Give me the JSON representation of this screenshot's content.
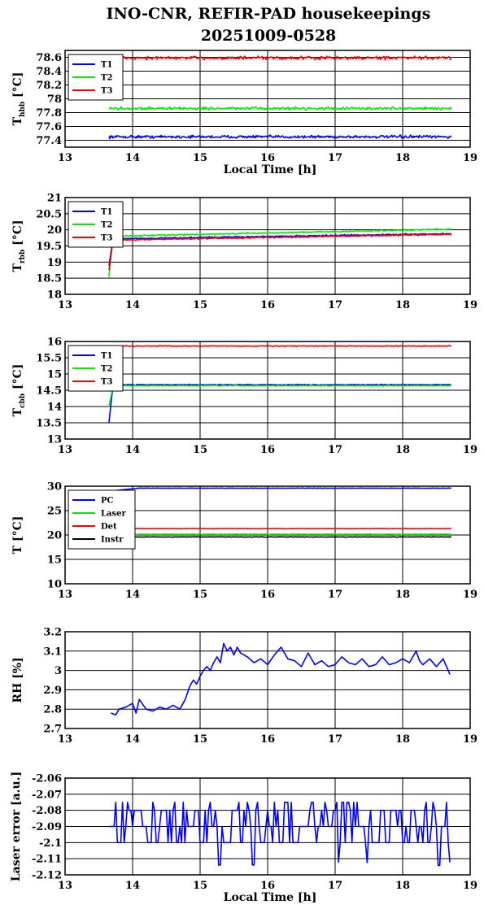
{
  "figure": {
    "title_line1": "INO-CNR, REFIR-PAD housekeepings",
    "title_line2": "20251009-0528"
  },
  "chart_data": [
    {
      "id": "hbb",
      "type": "line",
      "title": "",
      "xlabel": "Local Time [h]",
      "ylabel": {
        "main": "T",
        "sub": "hbb",
        "unit": " [°C]"
      },
      "xlim": [
        13,
        19
      ],
      "ylim": [
        77.3,
        78.7
      ],
      "xticks": [
        "13",
        "14",
        "15",
        "16",
        "17",
        "18",
        "19"
      ],
      "yticks": [
        "77.4",
        "77.6",
        "77.8",
        "78",
        "78.2",
        "78.4",
        "78.6"
      ],
      "ytick_values": [
        77.4,
        77.6,
        77.8,
        78.0,
        78.2,
        78.4,
        78.6
      ],
      "grid": true,
      "legend": "top-left",
      "x_range": [
        13.65,
        18.72
      ],
      "series": [
        {
          "name": "T1",
          "color": "#0000ff",
          "mean": 77.45,
          "noise": 0.03
        },
        {
          "name": "T2",
          "color": "#00ee00",
          "mean": 77.86,
          "noise": 0.03
        },
        {
          "name": "T3",
          "color": "#ff0000",
          "mean": 78.59,
          "noise": 0.035
        }
      ]
    },
    {
      "id": "rbb",
      "type": "line",
      "title": "",
      "xlabel": "",
      "ylabel": {
        "main": "T",
        "sub": "rbb",
        "unit": " [°C]"
      },
      "xlim": [
        13,
        19
      ],
      "ylim": [
        18,
        21
      ],
      "xticks": [
        "13",
        "14",
        "15",
        "16",
        "17",
        "18",
        "19"
      ],
      "yticks": [
        "18",
        "18.5",
        "19",
        "19.5",
        "20",
        "20.5",
        "21"
      ],
      "ytick_values": [
        18,
        18.5,
        19,
        19.5,
        20,
        20.5,
        21
      ],
      "grid": true,
      "legend": "top-left",
      "x_range": [
        13.65,
        18.72
      ],
      "series": [
        {
          "name": "T1",
          "color": "#0000ff",
          "start": 18.9,
          "mean_start": 19.72,
          "mean_end": 19.88,
          "noise": 0.03
        },
        {
          "name": "T2",
          "color": "#00ee00",
          "start": 18.55,
          "mean_start": 19.8,
          "mean_end": 20.02,
          "noise": 0.03
        },
        {
          "name": "T3",
          "color": "#ff0000",
          "start": 18.75,
          "mean_start": 19.68,
          "mean_end": 19.86,
          "noise": 0.03
        }
      ]
    },
    {
      "id": "cbb",
      "type": "line",
      "title": "",
      "xlabel": "",
      "ylabel": {
        "main": "T",
        "sub": "cbb",
        "unit": " [°C]"
      },
      "xlim": [
        13,
        19
      ],
      "ylim": [
        13,
        16
      ],
      "xticks": [
        "13",
        "14",
        "15",
        "16",
        "17",
        "18",
        "19"
      ],
      "yticks": [
        "13",
        "13.5",
        "14",
        "14.5",
        "15",
        "15.5",
        "16"
      ],
      "ytick_values": [
        13,
        13.5,
        14,
        14.5,
        15,
        15.5,
        16
      ],
      "grid": true,
      "legend": "top-left",
      "x_range": [
        13.65,
        18.72
      ],
      "series": [
        {
          "name": "T1",
          "color": "#0000ff",
          "start": 13.5,
          "mean": 14.67,
          "noise": 0.02
        },
        {
          "name": "T2",
          "color": "#00ee00",
          "start": 14.0,
          "mean": 14.64,
          "noise": 0.02
        },
        {
          "name": "T3",
          "color": "#ff0000",
          "start": 15.85,
          "mean": 15.86,
          "noise": 0.02
        }
      ]
    },
    {
      "id": "temps",
      "type": "line",
      "title": "",
      "xlabel": "",
      "ylabel": {
        "main": "T [°C]",
        "sub": "",
        "unit": ""
      },
      "xlim": [
        13,
        19
      ],
      "ylim": [
        10,
        30
      ],
      "xticks": [
        "13",
        "14",
        "15",
        "16",
        "17",
        "18",
        "19"
      ],
      "yticks": [
        "10",
        "15",
        "20",
        "25",
        "30"
      ],
      "ytick_values": [
        10,
        15,
        20,
        25,
        30
      ],
      "grid": true,
      "legend": "top-left",
      "x_range": [
        13.65,
        18.72
      ],
      "series": [
        {
          "name": "PC",
          "color": "#0000ff",
          "start": 29.0,
          "mean": 29.6,
          "noise": 0.05
        },
        {
          "name": "Laser",
          "color": "#00ee00",
          "start": 20.0,
          "mean": 20.15,
          "noise": 0.05
        },
        {
          "name": "Det",
          "color": "#ff0000",
          "start": 21.3,
          "mean": 21.3,
          "noise": 0.05
        },
        {
          "name": "Instr",
          "color": "#000000",
          "start": 19.3,
          "mean": 19.6,
          "noise": 0.08
        }
      ]
    },
    {
      "id": "rh",
      "type": "line",
      "title": "",
      "xlabel": "",
      "ylabel": {
        "main": "RH [%]",
        "sub": "",
        "unit": ""
      },
      "xlim": [
        13,
        19
      ],
      "ylim": [
        2.7,
        3.2
      ],
      "xticks": [
        "13",
        "14",
        "15",
        "16",
        "17",
        "18",
        "19"
      ],
      "yticks": [
        "2.7",
        "2.8",
        "2.9",
        "3",
        "3.1",
        "3.2"
      ],
      "ytick_values": [
        2.7,
        2.8,
        2.9,
        3.0,
        3.1,
        3.2
      ],
      "grid": true,
      "legend": "none",
      "series": [
        {
          "name": "",
          "color": "#0000ff",
          "x": [
            13.68,
            13.75,
            13.8,
            13.9,
            14.0,
            14.05,
            14.1,
            14.2,
            14.3,
            14.4,
            14.5,
            14.6,
            14.7,
            14.78,
            14.85,
            14.9,
            14.95,
            15.0,
            15.05,
            15.1,
            15.15,
            15.2,
            15.25,
            15.3,
            15.35,
            15.4,
            15.45,
            15.5,
            15.55,
            15.6,
            15.7,
            15.8,
            15.9,
            16.0,
            16.1,
            16.2,
            16.3,
            16.4,
            16.5,
            16.6,
            16.7,
            16.8,
            16.9,
            17.0,
            17.1,
            17.2,
            17.3,
            17.4,
            17.5,
            17.6,
            17.7,
            17.8,
            17.9,
            18.0,
            18.1,
            18.2,
            18.25,
            18.3,
            18.4,
            18.5,
            18.6,
            18.7
          ],
          "y": [
            2.78,
            2.77,
            2.8,
            2.81,
            2.83,
            2.78,
            2.85,
            2.8,
            2.79,
            2.81,
            2.8,
            2.82,
            2.8,
            2.85,
            2.92,
            2.95,
            2.93,
            2.97,
            3.0,
            3.02,
            3.0,
            3.04,
            3.07,
            3.04,
            3.14,
            3.1,
            3.12,
            3.08,
            3.12,
            3.09,
            3.07,
            3.04,
            3.06,
            3.03,
            3.08,
            3.12,
            3.06,
            3.05,
            3.02,
            3.09,
            3.03,
            3.05,
            3.02,
            3.03,
            3.07,
            3.04,
            3.03,
            3.06,
            3.02,
            3.03,
            3.07,
            3.03,
            3.04,
            3.06,
            3.04,
            3.1,
            3.05,
            3.03,
            3.06,
            3.02,
            3.06,
            2.98
          ]
        }
      ]
    },
    {
      "id": "laser",
      "type": "line",
      "title": "",
      "xlabel": "Local Time [h]",
      "ylabel": {
        "main": "Laser error [a.u.]",
        "sub": "",
        "unit": ""
      },
      "xlim": [
        13,
        19
      ],
      "ylim": [
        -2.12,
        -2.06
      ],
      "xticks": [
        "13",
        "14",
        "15",
        "16",
        "17",
        "18",
        "19"
      ],
      "yticks": [
        "-2.12",
        "-2.11",
        "-2.1",
        "-2.09",
        "-2.08",
        "-2.07",
        "-2.06"
      ],
      "ytick_values": [
        -2.12,
        -2.11,
        -2.1,
        -2.09,
        -2.08,
        -2.07,
        -2.06
      ],
      "grid": true,
      "legend": "none",
      "x_range": [
        13.65,
        18.72
      ],
      "levels": [
        -2.115,
        -2.1,
        -2.09,
        -2.08,
        -2.075,
        -2.065
      ],
      "series": [
        {
          "name": "",
          "color": "#0000ff"
        }
      ]
    }
  ]
}
